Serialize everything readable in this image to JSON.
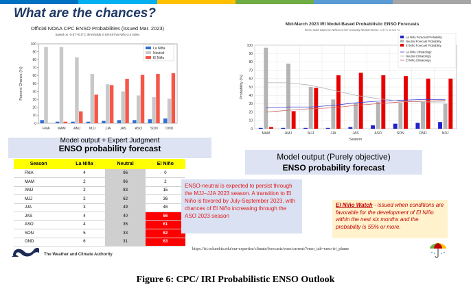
{
  "slide": {
    "title": "What are the chances?",
    "strip_colors": [
      "#0070c0",
      "#00b0f0",
      "#ffc000",
      "#70ad47",
      "#5b9bd5",
      "#a6a6a6"
    ]
  },
  "cpc_chart": {
    "title": "Official NOAA CPC ENSO Probabilities (issued Mar. 2023)",
    "subtitle": "based on -0.5°/+0.5°C thresholds in ERSSTv5 Niño-3.4 index",
    "ylabel": "Percent Chance (%)"
  },
  "iri_chart": {
    "title": "Mid-March 2023 IRI Model-Based Probabilistic ENSO Forecasts",
    "subtitle": "ENSO state based on NINO3.4 SST Anomaly Neutral ENSO: -0.5 °C to 0.5 °C",
    "ylabel": "Probability (%)",
    "xlabel": "Season"
  },
  "chart_data": [
    {
      "type": "bar",
      "title": "Official NOAA CPC ENSO Probabilities (issued Mar. 2023)",
      "subtitle": "based on -0.5°/+0.5°C thresholds in ERSSTv5 Niño-3.4 index",
      "xlabel": "",
      "ylabel": "Percent Chance (%)",
      "ylim": [
        0,
        100
      ],
      "yticks": [
        0,
        10,
        20,
        30,
        40,
        50,
        60,
        70,
        80,
        90,
        100
      ],
      "categories": [
        "FMA",
        "MAM",
        "AMJ",
        "MJJ",
        "JJA",
        "JAS",
        "ASO",
        "SON",
        "OND"
      ],
      "legend_position": "top-right",
      "grid": false,
      "series": [
        {
          "name": "La Niña",
          "color": "#2f6fd6",
          "values": [
            4,
            2,
            2,
            2,
            3,
            4,
            4,
            5,
            6
          ]
        },
        {
          "name": "Neutral",
          "color": "#c8c8c8",
          "values": [
            96,
            96,
            83,
            62,
            49,
            40,
            35,
            33,
            31
          ]
        },
        {
          "name": "El Niño",
          "color": "#f4574a",
          "values": [
            0,
            2,
            15,
            36,
            48,
            56,
            61,
            62,
            63
          ]
        }
      ]
    },
    {
      "type": "bar",
      "title": "Mid-March 2023 IRI Model-Based Probabilistic ENSO Forecasts",
      "subtitle": "ENSO state based on NINO3.4 SST Anomaly Neutral ENSO: -0.5 °C to 0.5 °C",
      "xlabel": "Season",
      "ylabel": "Probability (%)",
      "ylim": [
        0,
        100
      ],
      "yticks": [
        0,
        10,
        20,
        30,
        40,
        50,
        60,
        70,
        80,
        90,
        100
      ],
      "categories": [
        "MAM",
        "AMJ",
        "MJJ",
        "JJA",
        "JAS",
        "ASO",
        "SON",
        "OND",
        "NDJ"
      ],
      "legend_position": "top-right",
      "grid": true,
      "series": [
        {
          "name": "La Niña Forecast Probability",
          "color": "#1f1fcc",
          "values": [
            1,
            1,
            1,
            1,
            2,
            4,
            6,
            7,
            8
          ]
        },
        {
          "name": "Neutral Forecast Probability",
          "color": "#b4b4b4",
          "values": [
            97,
            78,
            50,
            35,
            31,
            32,
            31,
            32,
            30
          ]
        },
        {
          "name": "El Niño Forecast Probability",
          "color": "#e60000",
          "values": [
            2,
            21,
            49,
            64,
            67,
            64,
            63,
            60,
            60
          ]
        }
      ],
      "lines": [
        {
          "name": "La Niña Climatology",
          "color": "#3b3bd6",
          "values": [
            25,
            26,
            26,
            28,
            31,
            33,
            34,
            35,
            35
          ]
        },
        {
          "name": "Neutral Climatology",
          "color": "#b0b0b0",
          "values": [
            55,
            55,
            52,
            46,
            40,
            36,
            33,
            32,
            32
          ]
        },
        {
          "name": "El Niño Climatology",
          "color": "#d06060",
          "values": [
            20,
            22,
            24,
            25,
            28,
            30,
            32,
            33,
            34
          ]
        }
      ]
    },
    {
      "type": "table",
      "columns": [
        "Season",
        "La Niña",
        "Neutral",
        "El Niño"
      ],
      "rows": [
        [
          "FMA",
          "4",
          "96",
          "0"
        ],
        [
          "MAM",
          "2",
          "96",
          "2"
        ],
        [
          "AMJ",
          "2",
          "83",
          "15"
        ],
        [
          "MJJ",
          "2",
          "62",
          "36"
        ],
        [
          "JJA",
          "3",
          "49",
          "48"
        ],
        [
          "JAS",
          "4",
          "40",
          "56"
        ],
        [
          "ASO",
          "4",
          "35",
          "61"
        ],
        [
          "SON",
          "5",
          "33",
          "62"
        ],
        [
          "OND",
          "6",
          "31",
          "63"
        ]
      ],
      "highlight_from_row": 5
    }
  ],
  "labels": {
    "model_judgement_line1": "Model output + Expert Judgment",
    "model_judgement_line2": "ENSO probability forecast",
    "model_objective_line1": "Model output (Purely objective)",
    "model_objective_line2": "ENSO probability forecast"
  },
  "neutral_text": "ENSO-neutral is expected to persist through the MJJ–JJA 2023 season.  A transition to El Niño is favored by July-September 2023, with chances of El Niño increasing through the ASO 2023 season",
  "watch": {
    "title": "El Niño Watch",
    "body": " - issued when conditions are favorable for the development of El Niño within the next six months and the probability is 55% or more."
  },
  "url": "https://iri.columbia.edu/our-expertise/climate/forecasts/enso/current/?enso_tab=enso-iri_plume",
  "authority": "The Weather and Climate Authority",
  "caption": "Figure 6: CPC/ IRI Probabilistic ENSO Outlook"
}
